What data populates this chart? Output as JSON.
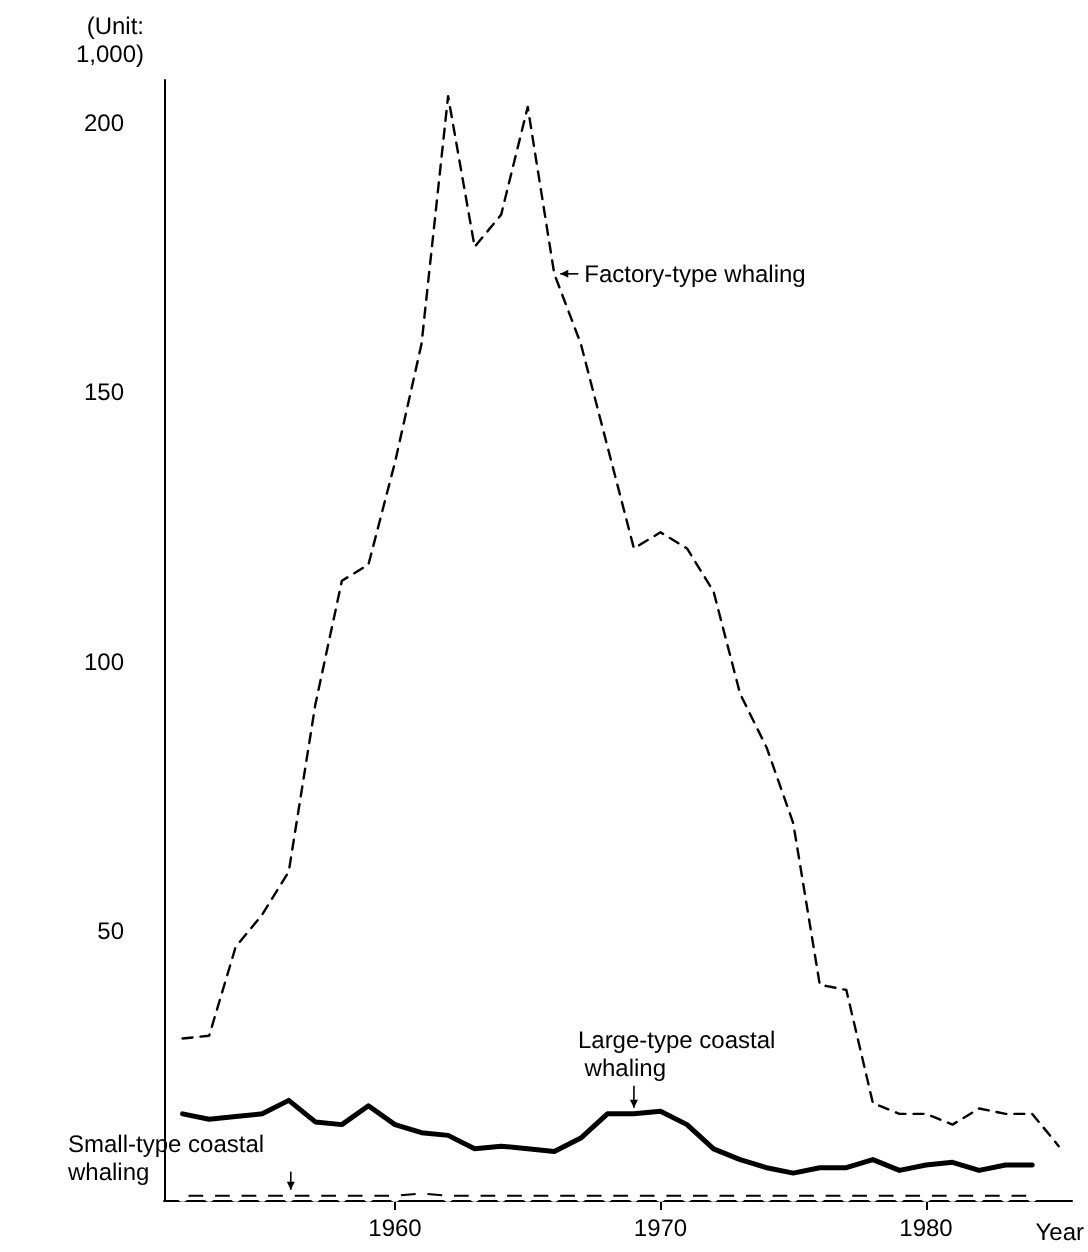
{
  "chart_data": {
    "type": "line",
    "ylabel": "(Unit: 1,000)",
    "xlabel": "Year",
    "xlim": [
      1951.3,
      1985.5
    ],
    "xticks": [
      1960,
      1970,
      1980
    ],
    "ylim": [
      0,
      208
    ],
    "yticks": [
      50,
      100,
      150,
      200
    ],
    "series": [
      {
        "color": "#000000",
        "line_style": "dashed",
        "marker": "none",
        "x": [
          1952,
          1953,
          1954,
          1955,
          1956,
          1957,
          1958,
          1959,
          1960,
          1961,
          1962,
          1963,
          1964,
          1965,
          1966,
          1967,
          1968,
          1969,
          1970,
          1971,
          1972,
          1973,
          1974,
          1975,
          1976,
          1977,
          1978,
          1979,
          1980,
          1981,
          1982,
          1983,
          1984,
          1985
        ],
        "values": [
          30,
          30.5,
          47,
          53,
          61,
          92,
          115,
          118,
          137,
          159,
          205,
          177,
          183,
          203,
          172,
          159,
          140,
          121,
          124,
          121,
          113,
          94,
          84,
          70,
          40,
          39,
          18,
          16,
          16,
          14,
          17,
          16,
          16,
          10
        ]
      },
      {
        "color": "#000000",
        "line_style": "solid",
        "marker": "none",
        "x": [
          1952,
          1953,
          1954,
          1955,
          1956,
          1957,
          1958,
          1959,
          1960,
          1961,
          1962,
          1963,
          1964,
          1965,
          1966,
          1967,
          1968,
          1969,
          1970,
          1971,
          1972,
          1973,
          1974,
          1975,
          1976,
          1977,
          1978,
          1979,
          1980,
          1981,
          1982,
          1983,
          1984
        ],
        "values": [
          16,
          15,
          15.5,
          16,
          18.5,
          14.5,
          14,
          17.5,
          14,
          12.5,
          12,
          9.5,
          10,
          9.5,
          9,
          11.5,
          16,
          16,
          16.5,
          14,
          9.5,
          7.5,
          6,
          5,
          6,
          6,
          7.5,
          5.5,
          6.5,
          7,
          5.5,
          6.5,
          6.5
        ]
      },
      {
        "color": "#000000",
        "line_style": "solid",
        "marker": "circle",
        "x": [
          1952,
          1953,
          1954,
          1955,
          1956,
          1957,
          1958,
          1959,
          1960,
          1961,
          1962,
          1963,
          1964,
          1965,
          1966,
          1967,
          1968,
          1969,
          1970,
          1971,
          1972,
          1973,
          1974,
          1975,
          1976,
          1977,
          1978,
          1979,
          1980,
          1981,
          1982,
          1983,
          1984
        ],
        "values": [
          0.8,
          0.8,
          0.8,
          0.8,
          0.8,
          0.8,
          0.8,
          0.8,
          0.8,
          1.2,
          0.8,
          0.8,
          0.8,
          0.8,
          0.8,
          0.8,
          0.8,
          0.8,
          0.8,
          0.8,
          0.8,
          0.8,
          0.8,
          0.8,
          0.8,
          0.8,
          0.8,
          0.8,
          0.8,
          0.8,
          0.8,
          0.8,
          0.8
        ]
      }
    ],
    "annotations": [
      {
        "text": "Factory-type whaling",
        "x": 1966,
        "y": 172
      },
      {
        "text": "Large-type coastal whaling",
        "x": 1969,
        "y": 16
      },
      {
        "text": "Small-type coastal whaling",
        "x": 1956,
        "y": 0.8
      }
    ]
  }
}
